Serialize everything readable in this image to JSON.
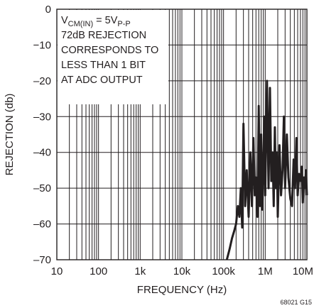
{
  "chart_data": {
    "type": "line",
    "title": "",
    "xlabel": "FREQUENCY (Hz)",
    "ylabel": "REJECTION (db)",
    "x_scale": "log",
    "xlim": [
      10,
      10000000
    ],
    "ylim": [
      -70,
      0
    ],
    "grid": true,
    "x_ticks": [
      {
        "value": 10,
        "label": "10"
      },
      {
        "value": 100,
        "label": "100"
      },
      {
        "value": 1000,
        "label": "1k"
      },
      {
        "value": 10000,
        "label": "10k"
      },
      {
        "value": 100000,
        "label": "100k"
      },
      {
        "value": 1000000,
        "label": "1M"
      },
      {
        "value": 10000000,
        "label": "10M"
      }
    ],
    "y_ticks": [
      {
        "value": 0,
        "label": "0"
      },
      {
        "value": -10,
        "label": "−10"
      },
      {
        "value": -20,
        "label": "–20"
      },
      {
        "value": -30,
        "label": "–30"
      },
      {
        "value": -40,
        "label": "–40"
      },
      {
        "value": -50,
        "label": "–50"
      },
      {
        "value": -60,
        "label": "–60"
      },
      {
        "value": -70,
        "label": "–70"
      }
    ],
    "annotation": {
      "line1_main": "V",
      "line1_sub": "CM(IN)",
      "line1_mid": " = 5V",
      "line1_sub2": "P-P",
      "lines": [
        "72dB REJECTION",
        "CORRESPONDS TO",
        "LESS THAN 1 BIT",
        "AT ADC OUTPUT"
      ]
    },
    "figure_code": "68021 G15",
    "series": [
      {
        "color": "#231f20",
        "x": [
          120000,
          140000,
          160000,
          180000,
          200000,
          220000,
          240000,
          260000,
          280000,
          300000,
          330000,
          360000,
          400000,
          440000,
          480000,
          520000,
          560000,
          600000,
          650000,
          700000,
          750000,
          800000,
          850000,
          900000,
          950000,
          1000000,
          1100000,
          1200000,
          1300000,
          1400000,
          1500000,
          1600000,
          1700000,
          1800000,
          1900000,
          2000000,
          2200000,
          2400000,
          2600000,
          2800000,
          3000000,
          3300000,
          3600000,
          4000000,
          4400000,
          4800000,
          5200000,
          5600000,
          6000000,
          6500000,
          7000000,
          7500000,
          8000000,
          8500000,
          9000000,
          9500000,
          10000000
        ],
        "y": [
          -70,
          -67,
          -64,
          -62,
          -60,
          -55,
          -58,
          -50,
          -61,
          -32,
          -55,
          -45,
          -58,
          -40,
          -55,
          -36,
          -52,
          -47,
          -58,
          -27,
          -55,
          -35,
          -56,
          -45,
          -30,
          -52,
          -20,
          -50,
          -22,
          -48,
          -40,
          -55,
          -33,
          -50,
          -40,
          -58,
          -38,
          -52,
          -45,
          -30,
          -50,
          -35,
          -47,
          -53,
          -55,
          -42,
          -50,
          -36,
          -52,
          -46,
          -48,
          -44,
          -54,
          -47,
          -50,
          -45,
          -52
        ]
      }
    ]
  }
}
